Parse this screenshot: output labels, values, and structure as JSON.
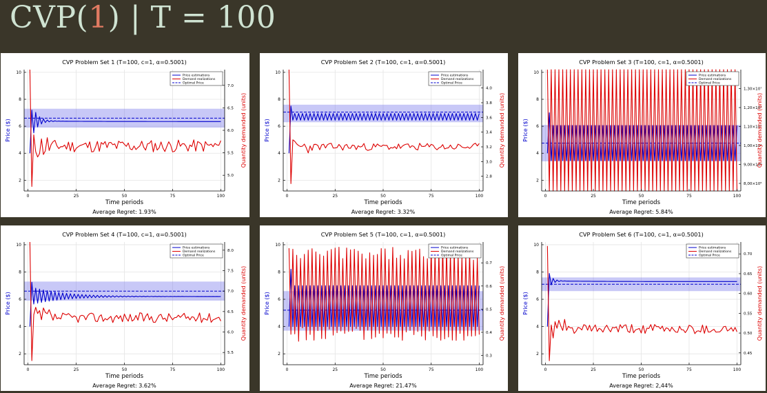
{
  "header": {
    "prefix": "CVP(",
    "highlight": "1",
    "suffix": ") | T = 100"
  },
  "colors": {
    "background": "#3a3629",
    "title_text": "#cfe3d2",
    "title_highlight": "#e07a62",
    "price": "#0000cc",
    "demand": "#dd0000",
    "band": "rgba(110,110,235,0.38)"
  },
  "chart_data": [
    {
      "type": "line",
      "title": "CVP Problem Set 1 (T=100, c=1, α=0.5001)",
      "xlabel": "Time periods",
      "ylabel_left": "Price ($)",
      "ylabel_right": "Quantity demanded (units)",
      "xlim": [
        -2,
        102
      ],
      "xticks": [
        0,
        25,
        50,
        75,
        100
      ],
      "ylim_left": [
        1.2,
        10.2
      ],
      "yticks_left": [
        2,
        4,
        6,
        8,
        10
      ],
      "ylim_right": [
        4.65,
        7.35
      ],
      "yticks_right": [
        {
          "v": 5.0,
          "label": "5.0"
        },
        {
          "v": 5.5,
          "label": "5.5"
        },
        {
          "v": 6.0,
          "label": "6.0"
        },
        {
          "v": 6.5,
          "label": "6.5"
        },
        {
          "v": 7.0,
          "label": "7.0"
        }
      ],
      "legend": [
        "Price estimations",
        "Demand realizations",
        "Optimal Price"
      ],
      "legend_position": "top-right",
      "grid": true,
      "optimal_price": 6.6,
      "band": [
        5.9,
        7.3
      ],
      "series": [
        {
          "name": "Price estimations",
          "axis": "left",
          "pattern": "converge",
          "start": 4.0,
          "peak": 7.2,
          "final": 6.35,
          "amp": 0.9,
          "decay": 0.35
        },
        {
          "name": "Demand realizations",
          "axis": "right",
          "pattern": "noisy",
          "spike": 7.35,
          "dip": 4.75,
          "level": 5.65,
          "noise": 0.14,
          "seed": 11
        }
      ],
      "footer": "Average Regret: 1.93%"
    },
    {
      "type": "line",
      "title": "CVP Problem Set 2 (T=100, c=1, α=0.5001)",
      "xlabel": "Time periods",
      "ylabel_left": "Price ($)",
      "ylabel_right": "Quantity demanded (units)",
      "xlim": [
        -2,
        102
      ],
      "xticks": [
        0,
        25,
        50,
        75,
        100
      ],
      "ylim_left": [
        1.2,
        10.2
      ],
      "yticks_left": [
        2,
        4,
        6,
        8,
        10
      ],
      "ylim_right": [
        2.6,
        4.25
      ],
      "yticks_right": [
        {
          "v": 2.8,
          "label": "2.8"
        },
        {
          "v": 3.0,
          "label": "3.0"
        },
        {
          "v": 3.2,
          "label": "3.2"
        },
        {
          "v": 3.4,
          "label": "3.4"
        },
        {
          "v": 3.6,
          "label": "3.6"
        },
        {
          "v": 3.8,
          "label": "3.8"
        },
        {
          "v": 4.0,
          "label": "4.0"
        }
      ],
      "legend": [
        "Price estimations",
        "Demand realizations",
        "Optimal Price"
      ],
      "legend_position": "top-right",
      "grid": true,
      "optimal_price": 7.05,
      "band": [
        6.3,
        7.6
      ],
      "series": [
        {
          "name": "Price estimations",
          "axis": "left",
          "pattern": "oscillate",
          "start": 4.0,
          "peak": 7.5,
          "mid": 6.7,
          "amp": 0.25
        },
        {
          "name": "Demand realizations",
          "axis": "right",
          "pattern": "noisy",
          "spike": 4.25,
          "dip": 2.7,
          "level": 3.2,
          "noise": 0.05,
          "seed": 23
        }
      ],
      "footer": "Average Regret: 3.32%"
    },
    {
      "type": "line",
      "title": "CVP Problem Set 3 (T=100, c=1, α=0.5001)",
      "xlabel": "Time periods",
      "ylabel_left": "Price ($)",
      "ylabel_right": "Quantity demanded (units)",
      "xlim": [
        -2,
        102
      ],
      "xticks": [
        0,
        25,
        50,
        75,
        100
      ],
      "ylim_left": [
        1.2,
        10.2
      ],
      "yticks_left": [
        2,
        4,
        6,
        8,
        10
      ],
      "ylim_right": [
        7.6,
        14.0
      ],
      "yticks_right": [
        {
          "v": 8.0,
          "label": "8,00×10⁶"
        },
        {
          "v": 9.0,
          "label": "9,00×10⁶"
        },
        {
          "v": 10.0,
          "label": "1,00×10⁷"
        },
        {
          "v": 11.0,
          "label": "1,10×10⁷"
        },
        {
          "v": 12.0,
          "label": "1,20×10⁷"
        },
        {
          "v": 13.0,
          "label": "1,30×10⁷"
        }
      ],
      "legend": [
        "Price estimations",
        "Demand realizations",
        "Optimal Price"
      ],
      "legend_position": "top-right",
      "grid": true,
      "optimal_price": 4.75,
      "band": [
        3.4,
        6.1
      ],
      "series": [
        {
          "name": "Price estimations",
          "axis": "left",
          "pattern": "oscillate",
          "start": 4.0,
          "peak": 7.0,
          "mid": 4.75,
          "amp": 1.3
        },
        {
          "name": "Demand realizations",
          "axis": "right",
          "pattern": "alternate",
          "hi": 14.0,
          "lo": 7.6
        }
      ],
      "footer": "Average Regret: 5.84%"
    },
    {
      "type": "line",
      "title": "CVP Problem Set 4 (T=100, c=1, α=0.5001)",
      "xlabel": "Time periods",
      "ylabel_left": "Price ($)",
      "ylabel_right": "Quantity demanded (units)",
      "xlim": [
        -2,
        102
      ],
      "xticks": [
        0,
        25,
        50,
        75,
        100
      ],
      "ylim_left": [
        1.2,
        10.2
      ],
      "yticks_left": [
        2,
        4,
        6,
        8,
        10
      ],
      "ylim_right": [
        5.2,
        8.2
      ],
      "yticks_right": [
        {
          "v": 5.5,
          "label": "5.5"
        },
        {
          "v": 6.0,
          "label": "6.0"
        },
        {
          "v": 6.5,
          "label": "6.5"
        },
        {
          "v": 7.0,
          "label": "7.0"
        },
        {
          "v": 7.5,
          "label": "7.5"
        },
        {
          "v": 8.0,
          "label": "8.0"
        }
      ],
      "legend": [
        "Price estimations",
        "Demand realizations",
        "Optimal Price"
      ],
      "legend_position": "top-right",
      "grid": true,
      "optimal_price": 6.6,
      "band": [
        5.9,
        7.3
      ],
      "series": [
        {
          "name": "Price estimations",
          "axis": "left",
          "pattern": "converge",
          "start": 4.0,
          "peak": 7.25,
          "final": 6.2,
          "amp": 0.6,
          "decay": 0.06
        },
        {
          "name": "Demand realizations",
          "axis": "right",
          "pattern": "noisy",
          "spike": 8.2,
          "dip": 5.3,
          "level": 6.35,
          "noise": 0.12,
          "seed": 37
        }
      ],
      "footer": "Average Regret: 3.62%"
    },
    {
      "type": "line",
      "title": "CVP Problem Set 5 (T=100, c=1, α=0.5001)",
      "xlabel": "Time periods",
      "ylabel_left": "Price ($)",
      "ylabel_right": "Quantity demanded (units)",
      "xlim": [
        -2,
        102
      ],
      "xticks": [
        0,
        25,
        50,
        75,
        100
      ],
      "ylim_left": [
        1.2,
        10.2
      ],
      "yticks_left": [
        2,
        4,
        6,
        8,
        10
      ],
      "ylim_right": [
        0.26,
        0.79
      ],
      "yticks_right": [
        {
          "v": 0.3,
          "label": "0.3"
        },
        {
          "v": 0.4,
          "label": "0.4"
        },
        {
          "v": 0.5,
          "label": "0.5"
        },
        {
          "v": 0.6,
          "label": "0.6"
        },
        {
          "v": 0.7,
          "label": "0.7"
        }
      ],
      "legend": [
        "Price estimations",
        "Demand realizations",
        "Optimal Price"
      ],
      "legend_position": "top-right",
      "grid": true,
      "optimal_price": 5.2,
      "band": [
        3.7,
        6.6
      ],
      "series": [
        {
          "name": "Price estimations",
          "axis": "left",
          "pattern": "oscillate",
          "start": 4.0,
          "peak": 8.2,
          "mid": 5.5,
          "amp": 1.5
        },
        {
          "name": "Demand realizations",
          "axis": "right",
          "pattern": "alternate_noisy",
          "hi": 0.74,
          "lo": 0.39,
          "noise": 0.03,
          "seed": 5
        }
      ],
      "footer": "Average Regret: 21.47%"
    },
    {
      "type": "line",
      "title": "CVP Problem Set 6 (T=100, c=1, α=0.5001)",
      "xlabel": "Time periods",
      "ylabel_left": "Price ($)",
      "ylabel_right": "Quantity demanded (units)",
      "xlim": [
        -2,
        102
      ],
      "xticks": [
        0,
        25,
        50,
        75,
        100
      ],
      "ylim_left": [
        1.2,
        10.2
      ],
      "yticks_left": [
        2,
        4,
        6,
        8,
        10
      ],
      "ylim_right": [
        0.42,
        0.73
      ],
      "yticks_right": [
        {
          "v": 0.45,
          "label": "0.45"
        },
        {
          "v": 0.5,
          "label": "0.50"
        },
        {
          "v": 0.55,
          "label": "0.55"
        },
        {
          "v": 0.6,
          "label": "0.60"
        },
        {
          "v": 0.65,
          "label": "0.65"
        },
        {
          "v": 0.7,
          "label": "0.70"
        }
      ],
      "legend": [
        "Price estimations",
        "Demand realizations",
        "Optimal Price"
      ],
      "legend_position": "top-right",
      "grid": true,
      "optimal_price": 7.1,
      "band": [
        6.6,
        7.6
      ],
      "series": [
        {
          "name": "Price estimations",
          "axis": "left",
          "pattern": "converge",
          "start": 4.0,
          "peak": 7.9,
          "final": 7.3,
          "amp": 0.3,
          "decay": 0.5
        },
        {
          "name": "Demand realizations",
          "axis": "right",
          "pattern": "noisy",
          "spike": 0.72,
          "dip": 0.43,
          "level": 0.51,
          "noise": 0.012,
          "seed": 61
        }
      ],
      "footer": "Average Regret: 2,44%"
    }
  ]
}
